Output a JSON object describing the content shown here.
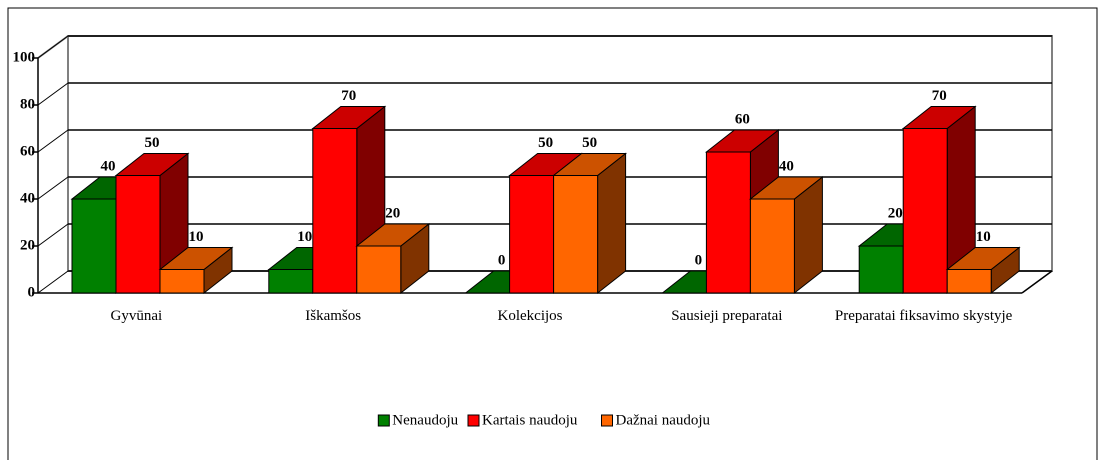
{
  "chart_data": {
    "type": "bar3d",
    "categories": [
      "Gyvūnai",
      "Iškamšos",
      "Kolekcijos",
      "Sausieji preparatai",
      "Preparatai fiksavimo skystyje"
    ],
    "series": [
      {
        "name": "Nenaudoju",
        "color": "#008000",
        "values": [
          40,
          10,
          0,
          0,
          20
        ]
      },
      {
        "name": "Kartais naudoju",
        "color": "#ff0000",
        "values": [
          50,
          70,
          50,
          60,
          70
        ]
      },
      {
        "name": "Dažnai naudoju",
        "color": "#ff6600",
        "values": [
          10,
          20,
          50,
          40,
          10
        ]
      }
    ],
    "ylim": [
      0,
      100
    ],
    "yticks": [
      0,
      20,
      40,
      60,
      80,
      100
    ],
    "grid": true,
    "legend": "bottom"
  }
}
